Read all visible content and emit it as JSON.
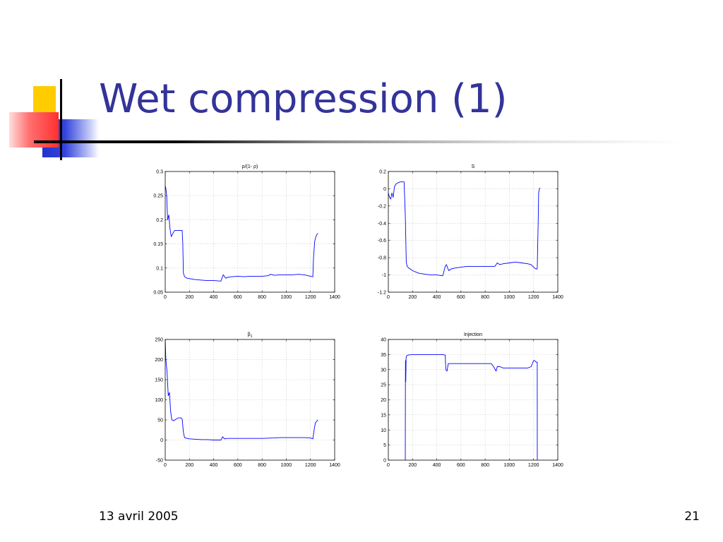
{
  "slide": {
    "title": "Wet compression (1)",
    "footer_date": "13 avril 2005",
    "page_number": "21"
  },
  "colors": {
    "title": "#333399",
    "line": "#0000ff"
  },
  "chart_data": [
    {
      "type": "line",
      "title": "ρ/(1- ρ)",
      "xlim": [
        0,
        1400
      ],
      "ylim": [
        0.05,
        0.3
      ],
      "xticks": [
        0,
        200,
        400,
        600,
        800,
        1000,
        1200,
        1400
      ],
      "yticks": [
        0.05,
        0.1,
        0.15,
        0.2,
        0.25,
        0.3
      ],
      "ytick_labels": [
        "0.05",
        "0.1",
        "0.15",
        "0.2",
        "0.25",
        "0.3"
      ],
      "grid": true,
      "series": [
        {
          "x": [
            0,
            5,
            12,
            20,
            30,
            40,
            50,
            60,
            70,
            80,
            100,
            120,
            140,
            145,
            150,
            160,
            180,
            200,
            250,
            300,
            350,
            400,
            460,
            470,
            480,
            500,
            520,
            550,
            600,
            650,
            700,
            750,
            800,
            850,
            870,
            900,
            950,
            1000,
            1050,
            1100,
            1150,
            1200,
            1220,
            1225,
            1235,
            1245,
            1255,
            1262
          ],
          "y": [
            0.27,
            0.265,
            0.25,
            0.2,
            0.21,
            0.18,
            0.165,
            0.17,
            0.175,
            0.178,
            0.178,
            0.178,
            0.178,
            0.15,
            0.09,
            0.082,
            0.079,
            0.078,
            0.076,
            0.075,
            0.074,
            0.074,
            0.073,
            0.08,
            0.086,
            0.079,
            0.081,
            0.082,
            0.083,
            0.082,
            0.083,
            0.083,
            0.083,
            0.084,
            0.087,
            0.085,
            0.086,
            0.086,
            0.086,
            0.087,
            0.086,
            0.083,
            0.082,
            0.12,
            0.155,
            0.165,
            0.17,
            0.172
          ]
        }
      ]
    },
    {
      "type": "line",
      "title": "S",
      "xlim": [
        0,
        1400
      ],
      "ylim": [
        -1.2,
        0.2
      ],
      "xticks": [
        0,
        200,
        400,
        600,
        800,
        1000,
        1200,
        1400
      ],
      "yticks": [
        -1.2,
        -1,
        -0.8,
        -0.6,
        -0.4,
        -0.2,
        0,
        0.2
      ],
      "ytick_labels": [
        "-1.2",
        "-1",
        "-0.8",
        "-0.6",
        "-0.4",
        "-0.2",
        "0",
        "0.2"
      ],
      "grid": true,
      "series": [
        {
          "x": [
            0,
            10,
            20,
            30,
            40,
            50,
            60,
            70,
            80,
            90,
            100,
            110,
            120,
            130,
            140,
            148,
            155,
            170,
            200,
            250,
            300,
            350,
            400,
            450,
            470,
            480,
            490,
            500,
            520,
            550,
            600,
            650,
            700,
            750,
            800,
            850,
            880,
            900,
            920,
            950,
            1000,
            1050,
            1100,
            1150,
            1180,
            1200,
            1220,
            1230,
            1238,
            1242,
            1248,
            1255
          ],
          "y": [
            -0.05,
            -0.1,
            -0.12,
            -0.05,
            -0.1,
            0.02,
            0.05,
            0.06,
            0.07,
            0.075,
            0.08,
            0.08,
            0.08,
            0.08,
            -0.3,
            -0.85,
            -0.9,
            -0.92,
            -0.95,
            -0.98,
            -0.99,
            -1.0,
            -1.0,
            -1.01,
            -0.9,
            -0.88,
            -0.92,
            -0.95,
            -0.93,
            -0.92,
            -0.91,
            -0.9,
            -0.9,
            -0.9,
            -0.9,
            -0.9,
            -0.9,
            -0.86,
            -0.88,
            -0.87,
            -0.86,
            -0.85,
            -0.86,
            -0.87,
            -0.88,
            -0.91,
            -0.93,
            -0.93,
            -0.4,
            -0.05,
            0.0,
            0.01
          ]
        }
      ]
    },
    {
      "type": "line",
      "title": "β1",
      "title_main": "β",
      "title_sub": "1",
      "xlim": [
        0,
        1400
      ],
      "ylim": [
        -50,
        250
      ],
      "xticks": [
        0,
        200,
        400,
        600,
        800,
        1000,
        1200,
        1400
      ],
      "yticks": [
        -50,
        0,
        50,
        100,
        150,
        200,
        250
      ],
      "ytick_labels": [
        "-50",
        "0",
        "50",
        "100",
        "150",
        "200",
        "250"
      ],
      "grid": true,
      "series": [
        {
          "x": [
            0,
            5,
            15,
            25,
            35,
            45,
            55,
            70,
            90,
            110,
            130,
            140,
            150,
            160,
            180,
            200,
            250,
            300,
            350,
            400,
            460,
            475,
            490,
            520,
            600,
            700,
            800,
            900,
            950,
            1000,
            1050,
            1100,
            1150,
            1200,
            1220,
            1230,
            1240,
            1255,
            1262
          ],
          "y": [
            250,
            200,
            170,
            110,
            118,
            70,
            50,
            48,
            52,
            55,
            55,
            52,
            20,
            6,
            4,
            3,
            2,
            1,
            1,
            0,
            0,
            8,
            3,
            4,
            4,
            4,
            4,
            5,
            6,
            6,
            6,
            6,
            6,
            5,
            3,
            25,
            42,
            48,
            50
          ]
        }
      ]
    },
    {
      "type": "line",
      "title": "Injection",
      "xlim": [
        0,
        1400
      ],
      "ylim": [
        0,
        40
      ],
      "xticks": [
        0,
        200,
        400,
        600,
        800,
        1000,
        1200,
        1400
      ],
      "yticks": [
        0,
        5,
        10,
        15,
        20,
        25,
        30,
        35,
        40
      ],
      "ytick_labels": [
        "0",
        "5",
        "10",
        "15",
        "20",
        "25",
        "30",
        "35",
        "40"
      ],
      "grid": true,
      "series": [
        {
          "x": [
            140,
            141,
            142,
            144,
            147,
            150,
            160,
            200,
            250,
            300,
            350,
            400,
            450,
            470,
            475,
            485,
            495,
            510,
            550,
            600,
            650,
            700,
            750,
            800,
            850,
            870,
            890,
            900,
            920,
            950,
            1000,
            1050,
            1100,
            1150,
            1180,
            1200,
            1210,
            1220,
            1230,
            1231
          ],
          "y": [
            0,
            27,
            33,
            26,
            34,
            34.5,
            34.8,
            35,
            35,
            35,
            35,
            35,
            35,
            34.8,
            30,
            29.5,
            32,
            32,
            32,
            32,
            32,
            32,
            32,
            32,
            32,
            31,
            29.5,
            31,
            31,
            30.5,
            30.5,
            30.5,
            30.5,
            30.5,
            31,
            33,
            33,
            32.5,
            32.5,
            0
          ]
        }
      ]
    }
  ]
}
